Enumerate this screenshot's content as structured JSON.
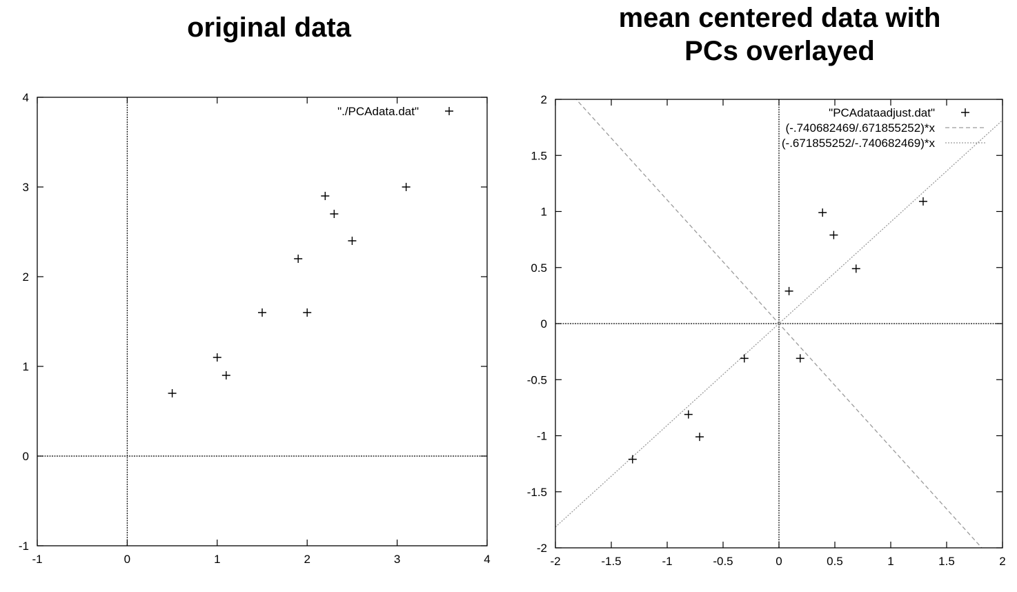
{
  "chart_data": [
    {
      "type": "scatter",
      "title": "original data",
      "xlim": [
        -1,
        4
      ],
      "ylim": [
        -1,
        4
      ],
      "xticks": [
        "-1",
        "0",
        "1",
        "2",
        "3",
        "4"
      ],
      "yticks": [
        "-1",
        "0",
        "1",
        "2",
        "3",
        "4"
      ],
      "xtick_values": [
        -1,
        0,
        1,
        2,
        3,
        4
      ],
      "ytick_values": [
        -1,
        0,
        1,
        2,
        3,
        4
      ],
      "zero_axes": true,
      "legend_position": "top-right",
      "series": [
        {
          "name": "\"./PCAdata.dat\"",
          "marker": "+",
          "points": [
            {
              "x": 2.5,
              "y": 2.4
            },
            {
              "x": 0.5,
              "y": 0.7
            },
            {
              "x": 2.2,
              "y": 2.9
            },
            {
              "x": 1.9,
              "y": 2.2
            },
            {
              "x": 3.1,
              "y": 3.0
            },
            {
              "x": 2.3,
              "y": 2.7
            },
            {
              "x": 2.0,
              "y": 1.6
            },
            {
              "x": 1.0,
              "y": 1.1
            },
            {
              "x": 1.5,
              "y": 1.6
            },
            {
              "x": 1.1,
              "y": 0.9
            }
          ]
        }
      ]
    },
    {
      "type": "scatter",
      "title": "mean centered data with\nPCs overlayed",
      "xlim": [
        -2,
        2
      ],
      "ylim": [
        -2,
        2
      ],
      "xticks": [
        "-2",
        "-1.5",
        "-1",
        "-0.5",
        "0",
        "0.5",
        "1",
        "1.5",
        "2"
      ],
      "yticks": [
        "-2",
        "-1.5",
        "-1",
        "-0.5",
        "0",
        "0.5",
        "1",
        "1.5",
        "2"
      ],
      "xtick_values": [
        -2,
        -1.5,
        -1,
        -0.5,
        0,
        0.5,
        1,
        1.5,
        2
      ],
      "ytick_values": [
        -2,
        -1.5,
        -1,
        -0.5,
        0,
        0.5,
        1,
        1.5,
        2
      ],
      "zero_axes": true,
      "legend_position": "top-right",
      "series": [
        {
          "name": "\"PCAdataadjust.dat\"",
          "marker": "+",
          "points": [
            {
              "x": 0.69,
              "y": 0.49
            },
            {
              "x": -1.31,
              "y": -1.21
            },
            {
              "x": 0.39,
              "y": 0.99
            },
            {
              "x": 0.09,
              "y": 0.29
            },
            {
              "x": 1.29,
              "y": 1.09
            },
            {
              "x": 0.49,
              "y": 0.79
            },
            {
              "x": 0.19,
              "y": -0.31
            },
            {
              "x": -0.81,
              "y": -0.81
            },
            {
              "x": -0.31,
              "y": -0.31
            },
            {
              "x": -0.71,
              "y": -1.01
            }
          ]
        },
        {
          "name": "(-.740682469/.671855252)*x",
          "type": "line",
          "slope": -1.1024,
          "style": "dashed",
          "color": "#9a9a9a"
        },
        {
          "name": "(-.671855252/-.740682469)*x",
          "type": "line",
          "slope": 0.9071,
          "style": "dotted",
          "color": "#9a9a9a"
        }
      ]
    }
  ]
}
